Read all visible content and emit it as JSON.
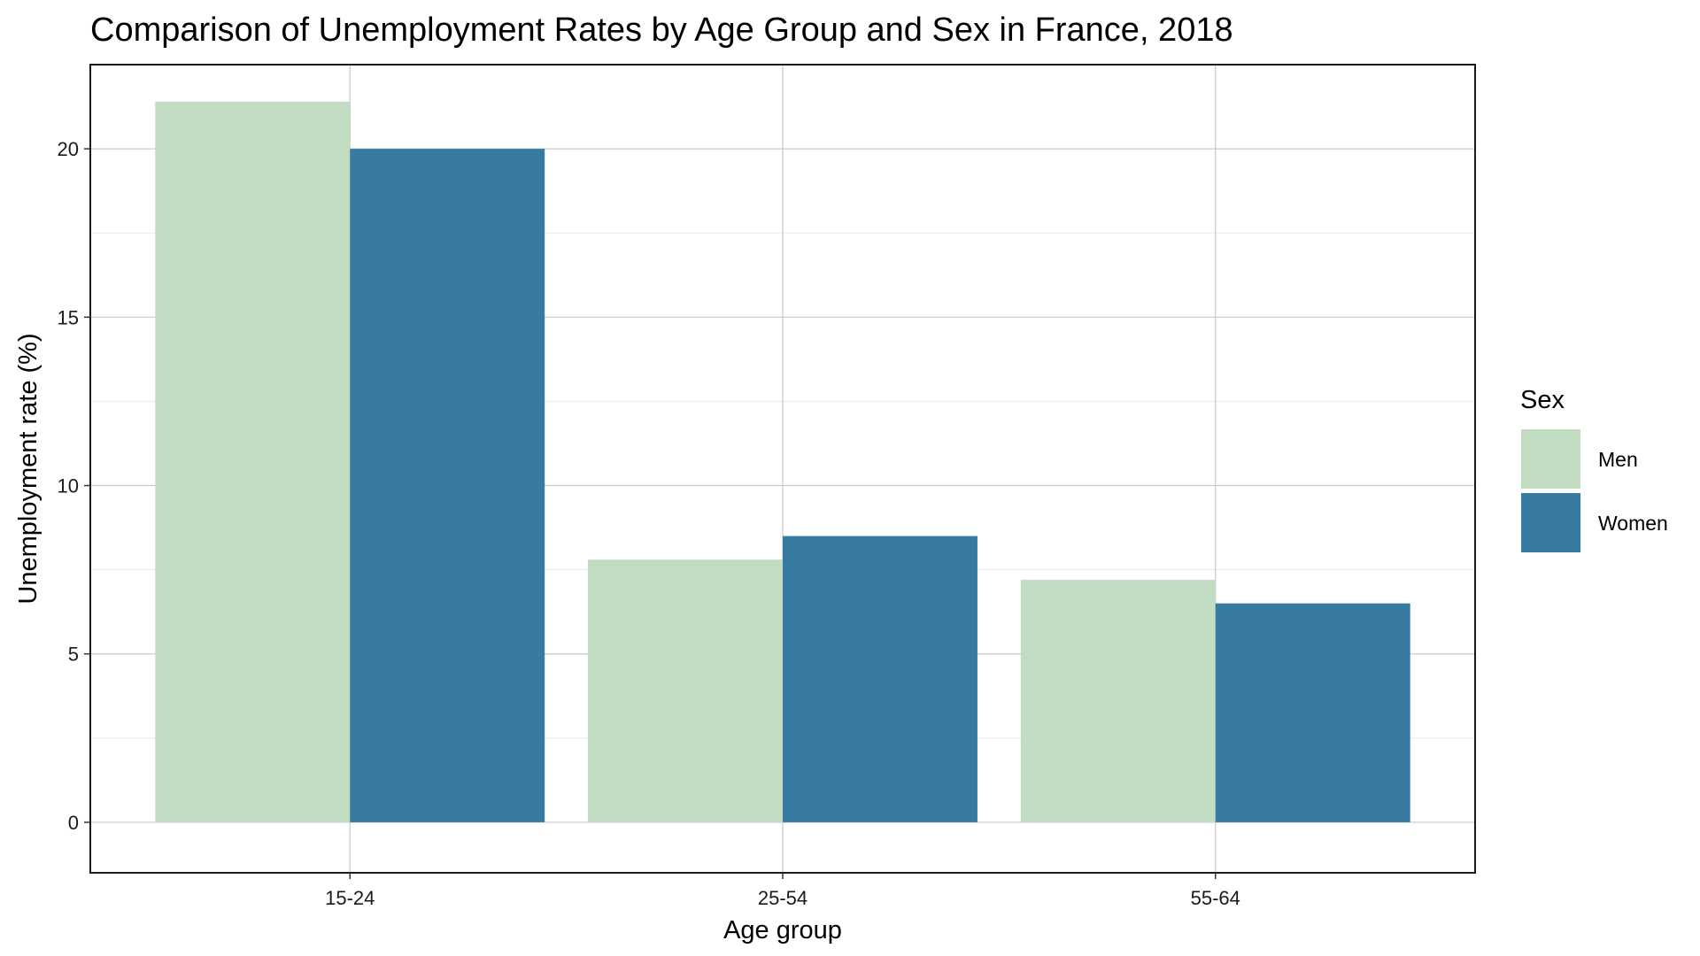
{
  "chart_data": {
    "type": "bar",
    "title": "Comparison of Unemployment Rates by Age Group and Sex in France, 2018",
    "xlabel": "Age group",
    "ylabel": "Unemployment rate (%)",
    "categories": [
      "15-24",
      "25-54",
      "55-64"
    ],
    "series": [
      {
        "name": "Men",
        "color": "#c2dcc1",
        "values": [
          21.4,
          7.8,
          7.2
        ]
      },
      {
        "name": "Women",
        "color": "#377ba1",
        "values": [
          20.0,
          8.5,
          6.5
        ]
      }
    ],
    "ylim": [
      -1.5,
      22.5
    ],
    "yticks": [
      0,
      5,
      10,
      15,
      20
    ],
    "grid": true,
    "legend": {
      "title": "Sex",
      "position": "right"
    }
  }
}
